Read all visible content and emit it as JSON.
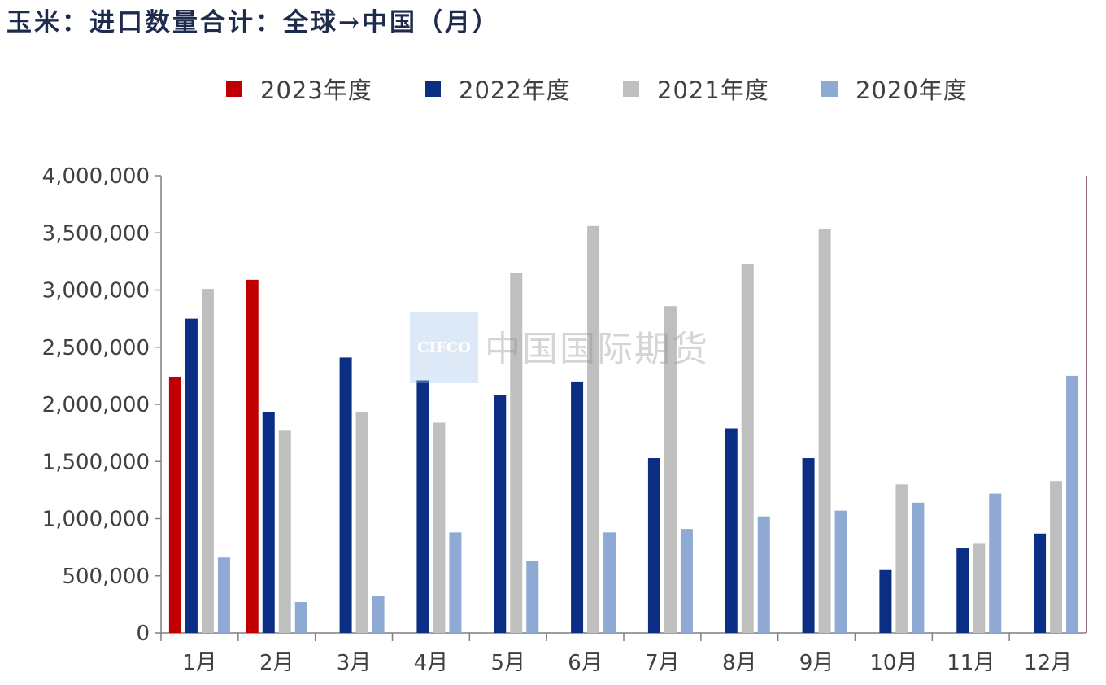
{
  "title": "玉米：进口数量合计：全球→中国（月）",
  "watermark": {
    "logo_text": "CIFCO",
    "text": "中国国际期货"
  },
  "chart_data": {
    "type": "bar",
    "title": "玉米：进口数量合计：全球→中国（月）",
    "categories": [
      "1月",
      "2月",
      "3月",
      "4月",
      "5月",
      "6月",
      "7月",
      "8月",
      "9月",
      "10月",
      "11月",
      "12月"
    ],
    "series": [
      {
        "name": "2023年度",
        "color": "#c00000",
        "values": [
          2240000,
          3090000,
          null,
          null,
          null,
          null,
          null,
          null,
          null,
          null,
          null,
          null
        ]
      },
      {
        "name": "2022年度",
        "color": "#0b2d83",
        "values": [
          2750000,
          1930000,
          2410000,
          2210000,
          2080000,
          2200000,
          1530000,
          1790000,
          1530000,
          550000,
          740000,
          870000
        ]
      },
      {
        "name": "2021年度",
        "color": "#bfbfbf",
        "values": [
          3010000,
          1770000,
          1930000,
          1840000,
          3150000,
          3560000,
          2860000,
          3230000,
          3530000,
          1300000,
          780000,
          1330000
        ]
      },
      {
        "name": "2020年度",
        "color": "#8ea9d4",
        "values": [
          660000,
          270000,
          320000,
          880000,
          630000,
          880000,
          910000,
          1020000,
          1070000,
          1140000,
          1220000,
          2250000
        ]
      }
    ],
    "yticks": [
      "0",
      "500,000",
      "1,000,000",
      "1,500,000",
      "2,000,000",
      "2,500,000",
      "3,000,000",
      "3,500,000",
      "4,000,000"
    ],
    "ylim": [
      0,
      4000000
    ],
    "legend_position": "top",
    "grid": false
  }
}
